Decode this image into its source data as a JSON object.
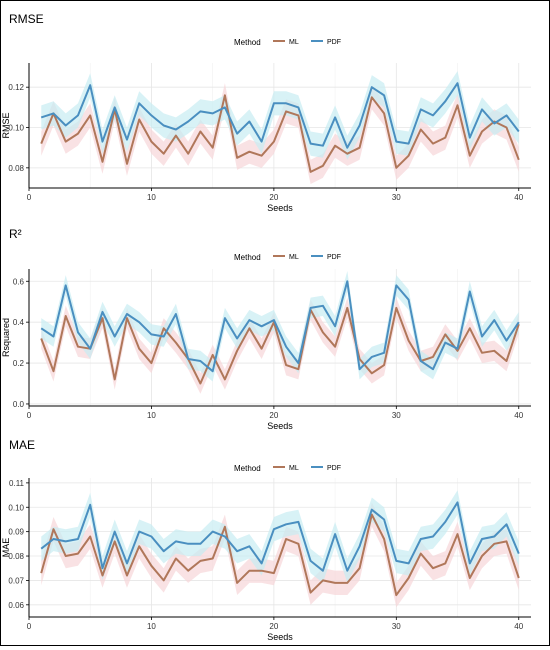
{
  "chart_data": [
    {
      "type": "line",
      "title": "RMSE",
      "xlabel": "Seeds",
      "ylabel": "RMSE",
      "xlim": [
        0,
        41
      ],
      "ylim": [
        0.07,
        0.132
      ],
      "xticks": [
        0,
        10,
        20,
        30,
        40
      ],
      "yticks": [
        0.08,
        0.1,
        0.12
      ],
      "ytick_labels": [
        "0.08",
        "0.10",
        "0.12"
      ],
      "legend_title": "Method",
      "legend_position": "top-center",
      "grid": true,
      "colors": {
        "ML": "#b0775a",
        "PDF": "#4a8fc0",
        "ML_band": "#f7d5d8",
        "PDF_band": "#c7ecf2"
      },
      "x": [
        1,
        2,
        3,
        4,
        5,
        6,
        7,
        8,
        9,
        10,
        11,
        12,
        13,
        14,
        15,
        16,
        17,
        18,
        19,
        20,
        21,
        22,
        23,
        24,
        25,
        26,
        27,
        28,
        29,
        30,
        31,
        32,
        33,
        34,
        35,
        36,
        37,
        38,
        39,
        40
      ],
      "series": [
        {
          "name": "ML",
          "values": [
            0.092,
            0.107,
            0.093,
            0.097,
            0.106,
            0.083,
            0.109,
            0.082,
            0.104,
            0.093,
            0.087,
            0.096,
            0.087,
            0.098,
            0.09,
            0.116,
            0.085,
            0.088,
            0.086,
            0.093,
            0.108,
            0.106,
            0.078,
            0.081,
            0.091,
            0.087,
            0.09,
            0.115,
            0.107,
            0.08,
            0.086,
            0.099,
            0.092,
            0.095,
            0.111,
            0.086,
            0.098,
            0.103,
            0.1,
            0.084
          ],
          "band": 0.006
        },
        {
          "name": "PDF",
          "values": [
            0.105,
            0.107,
            0.101,
            0.106,
            0.121,
            0.093,
            0.11,
            0.094,
            0.112,
            0.106,
            0.101,
            0.099,
            0.103,
            0.108,
            0.107,
            0.11,
            0.097,
            0.103,
            0.093,
            0.112,
            0.112,
            0.11,
            0.092,
            0.091,
            0.105,
            0.09,
            0.101,
            0.12,
            0.116,
            0.093,
            0.092,
            0.109,
            0.106,
            0.113,
            0.122,
            0.095,
            0.109,
            0.102,
            0.106,
            0.098
          ],
          "band": 0.006
        }
      ]
    },
    {
      "type": "line",
      "title": "R²",
      "xlabel": "Seeds",
      "ylabel": "Rsquared",
      "xlim": [
        0,
        41
      ],
      "ylim": [
        -0.01,
        0.66
      ],
      "xticks": [
        0,
        10,
        20,
        30,
        40
      ],
      "yticks": [
        0.0,
        0.2,
        0.4,
        0.6
      ],
      "ytick_labels": [
        "0.0",
        "0.2",
        "0.4",
        "0.6"
      ],
      "legend_title": "Method",
      "legend_position": "top-center",
      "grid": true,
      "colors": {
        "ML": "#b0775a",
        "PDF": "#4a8fc0",
        "ML_band": "#f7d5d8",
        "PDF_band": "#c7ecf2"
      },
      "x": [
        1,
        2,
        3,
        4,
        5,
        6,
        7,
        8,
        9,
        10,
        11,
        12,
        13,
        14,
        15,
        16,
        17,
        18,
        19,
        20,
        21,
        22,
        23,
        24,
        25,
        26,
        27,
        28,
        29,
        30,
        31,
        32,
        33,
        34,
        35,
        36,
        37,
        38,
        39,
        40
      ],
      "series": [
        {
          "name": "ML",
          "values": [
            0.32,
            0.16,
            0.43,
            0.28,
            0.27,
            0.42,
            0.12,
            0.42,
            0.27,
            0.2,
            0.37,
            0.3,
            0.22,
            0.1,
            0.24,
            0.12,
            0.26,
            0.37,
            0.27,
            0.4,
            0.19,
            0.17,
            0.46,
            0.35,
            0.28,
            0.47,
            0.22,
            0.15,
            0.19,
            0.47,
            0.31,
            0.21,
            0.23,
            0.34,
            0.26,
            0.37,
            0.25,
            0.26,
            0.21,
            0.39
          ],
          "band": 0.05
        },
        {
          "name": "PDF",
          "values": [
            0.37,
            0.33,
            0.58,
            0.35,
            0.27,
            0.45,
            0.33,
            0.44,
            0.4,
            0.34,
            0.33,
            0.44,
            0.22,
            0.21,
            0.16,
            0.42,
            0.32,
            0.41,
            0.38,
            0.41,
            0.28,
            0.2,
            0.47,
            0.48,
            0.38,
            0.6,
            0.17,
            0.23,
            0.25,
            0.58,
            0.51,
            0.21,
            0.17,
            0.3,
            0.27,
            0.55,
            0.33,
            0.41,
            0.31,
            0.4
          ],
          "band": 0.05
        }
      ]
    },
    {
      "type": "line",
      "title": "MAE",
      "xlabel": "Seeds",
      "ylabel": "MAE",
      "xlim": [
        0,
        41
      ],
      "ylim": [
        0.055,
        0.112
      ],
      "xticks": [
        0,
        10,
        20,
        30,
        40
      ],
      "yticks": [
        0.06,
        0.07,
        0.08,
        0.09,
        0.1,
        0.11
      ],
      "ytick_labels": [
        "0.06",
        "0.07",
        "0.08",
        "0.09",
        "0.10",
        "0.11"
      ],
      "legend_title": "Method",
      "legend_position": "top-center",
      "grid": true,
      "colors": {
        "ML": "#b0775a",
        "PDF": "#4a8fc0",
        "ML_band": "#f7d5d8",
        "PDF_band": "#c7ecf2"
      },
      "x": [
        1,
        2,
        3,
        4,
        5,
        6,
        7,
        8,
        9,
        10,
        11,
        12,
        13,
        14,
        15,
        16,
        17,
        18,
        19,
        20,
        21,
        22,
        23,
        24,
        25,
        26,
        27,
        28,
        29,
        30,
        31,
        32,
        33,
        34,
        35,
        36,
        37,
        38,
        39,
        40
      ],
      "series": [
        {
          "name": "ML",
          "values": [
            0.073,
            0.091,
            0.08,
            0.081,
            0.088,
            0.072,
            0.086,
            0.072,
            0.084,
            0.076,
            0.07,
            0.079,
            0.074,
            0.078,
            0.079,
            0.092,
            0.069,
            0.074,
            0.074,
            0.073,
            0.087,
            0.085,
            0.065,
            0.07,
            0.069,
            0.069,
            0.075,
            0.097,
            0.087,
            0.064,
            0.071,
            0.081,
            0.075,
            0.077,
            0.089,
            0.071,
            0.08,
            0.085,
            0.086,
            0.071
          ],
          "band": 0.005
        },
        {
          "name": "PDF",
          "values": [
            0.083,
            0.087,
            0.086,
            0.087,
            0.101,
            0.075,
            0.09,
            0.077,
            0.09,
            0.088,
            0.082,
            0.086,
            0.085,
            0.085,
            0.09,
            0.088,
            0.082,
            0.084,
            0.077,
            0.091,
            0.093,
            0.094,
            0.078,
            0.074,
            0.089,
            0.074,
            0.084,
            0.099,
            0.095,
            0.078,
            0.077,
            0.087,
            0.088,
            0.094,
            0.102,
            0.077,
            0.087,
            0.088,
            0.093,
            0.081
          ],
          "band": 0.005
        }
      ]
    }
  ]
}
